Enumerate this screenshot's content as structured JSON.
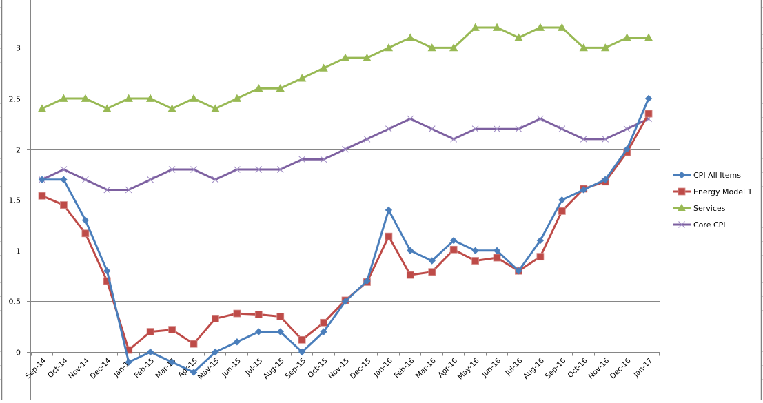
{
  "chart_data": {
    "type": "line",
    "title": "",
    "xlabel": "",
    "ylabel": "",
    "ylim": [
      0,
      3.5
    ],
    "yticks": [
      0,
      0.5,
      1,
      1.5,
      2,
      2.5,
      3
    ],
    "ytick_labels": [
      "0",
      "0.5",
      "1",
      "1.5",
      "2",
      "2.5",
      "3"
    ],
    "grid": true,
    "legend_position": "right",
    "categories": [
      "Sep-14",
      "Oct-14",
      "Nov-14",
      "Dec-14",
      "Jan-15",
      "Feb-15",
      "Mar-15",
      "Apr-15",
      "May-15",
      "Jun-15",
      "Jul-15",
      "Aug-15",
      "Sep-15",
      "Oct-15",
      "Nov-15",
      "Dec-15",
      "Jan-16",
      "Feb-16",
      "Mar-16",
      "Apr-16",
      "May-16",
      "Jun-16",
      "Jul-16",
      "Aug-16",
      "Sep-16",
      "Oct-16",
      "Nov-16",
      "Dec-16",
      "Jan-17"
    ],
    "series": [
      {
        "name": "CPI All Items",
        "color": "#4a7ebb",
        "marker": "diamond",
        "values": [
          1.7,
          1.7,
          1.3,
          0.8,
          -0.1,
          0.0,
          -0.1,
          -0.2,
          0.0,
          0.1,
          0.2,
          0.2,
          0.0,
          0.2,
          0.5,
          0.7,
          1.4,
          1.0,
          0.9,
          1.1,
          1.0,
          1.0,
          0.8,
          1.1,
          1.5,
          1.6,
          1.7,
          2.0,
          2.5
        ]
      },
      {
        "name": "Energy Model 1",
        "color": "#be4b48",
        "marker": "square",
        "values": [
          1.54,
          1.45,
          1.17,
          0.7,
          0.02,
          0.2,
          0.22,
          0.08,
          0.33,
          0.38,
          0.37,
          0.35,
          0.12,
          0.29,
          0.51,
          0.69,
          1.14,
          0.76,
          0.79,
          1.01,
          0.9,
          0.93,
          0.8,
          0.94,
          1.39,
          1.61,
          1.68,
          1.97,
          2.35
        ]
      },
      {
        "name": "Services",
        "color": "#98b954",
        "marker": "triangle",
        "values": [
          2.4,
          2.5,
          2.5,
          2.4,
          2.5,
          2.5,
          2.4,
          2.5,
          2.4,
          2.5,
          2.6,
          2.6,
          2.7,
          2.8,
          2.9,
          2.9,
          3.0,
          3.1,
          3.0,
          3.0,
          3.2,
          3.2,
          3.1,
          3.2,
          3.2,
          3.0,
          3.0,
          3.1,
          3.1
        ]
      },
      {
        "name": "Core CPI",
        "color": "#7d60a0",
        "marker": "x",
        "values": [
          1.7,
          1.8,
          1.7,
          1.6,
          1.6,
          1.7,
          1.8,
          1.8,
          1.7,
          1.8,
          1.8,
          1.8,
          1.9,
          1.9,
          2.0,
          2.1,
          2.2,
          2.3,
          2.2,
          2.1,
          2.2,
          2.2,
          2.2,
          2.3,
          2.2,
          2.1,
          2.1,
          2.2,
          2.3
        ]
      }
    ]
  },
  "colors": {
    "gridline": "#868686",
    "axis": "#868686",
    "frame": "#808080",
    "cell_tick": "#d0d0d0"
  }
}
